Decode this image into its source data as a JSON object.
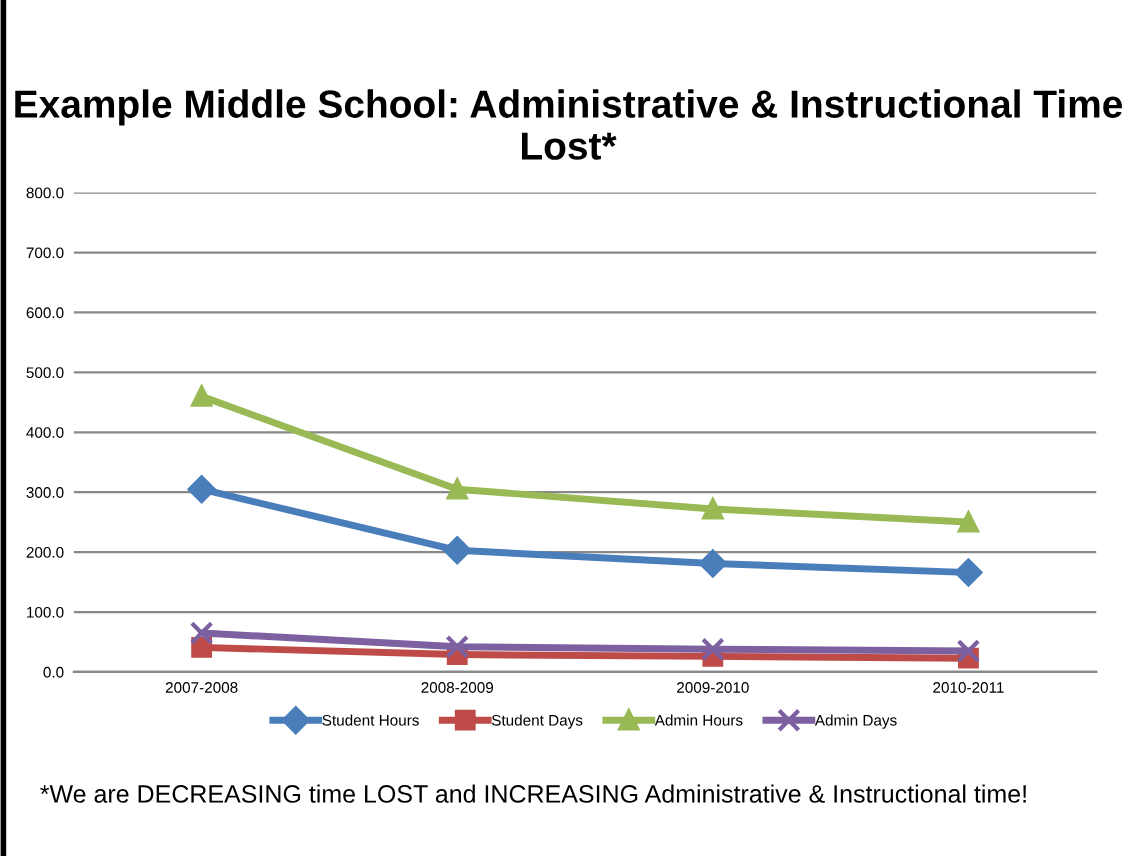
{
  "chart_data": {
    "type": "line",
    "title": "Example Middle School: Administrative & Instructional Time Lost*",
    "categories": [
      "2007-2008",
      "2008-2009",
      "2009-2010",
      "2010-2011"
    ],
    "series": [
      {
        "name": "Student Hours",
        "color": "#4a7ebb",
        "marker": "diamond",
        "values": [
          305,
          203,
          181,
          166
        ]
      },
      {
        "name": "Student Days",
        "color": "#be4b48",
        "marker": "square",
        "values": [
          41,
          29,
          26,
          23
        ]
      },
      {
        "name": "Admin Hours",
        "color": "#98b954",
        "marker": "triangle",
        "values": [
          460,
          305,
          272,
          250
        ]
      },
      {
        "name": "Admin Days",
        "color": "#7d60a0",
        "marker": "cross",
        "values": [
          65,
          42,
          38,
          35
        ]
      }
    ],
    "ylim": [
      0,
      800
    ],
    "yticks": [
      {
        "value": 0,
        "label": "0.0"
      },
      {
        "value": 100,
        "label": "100.0"
      },
      {
        "value": 200,
        "label": "200.0"
      },
      {
        "value": 300,
        "label": "300.0"
      },
      {
        "value": 400,
        "label": "400.0"
      },
      {
        "value": 500,
        "label": "500.0"
      },
      {
        "value": 600,
        "label": "600.0"
      },
      {
        "value": 700,
        "label": "700.0"
      },
      {
        "value": 800,
        "label": "800.0"
      }
    ],
    "grid": "y",
    "legend": "bottom",
    "line_style": "solid",
    "annotations": [
      "*We are DECREASING time LOST and INCREASING Administrative & Instructional time!"
    ]
  }
}
